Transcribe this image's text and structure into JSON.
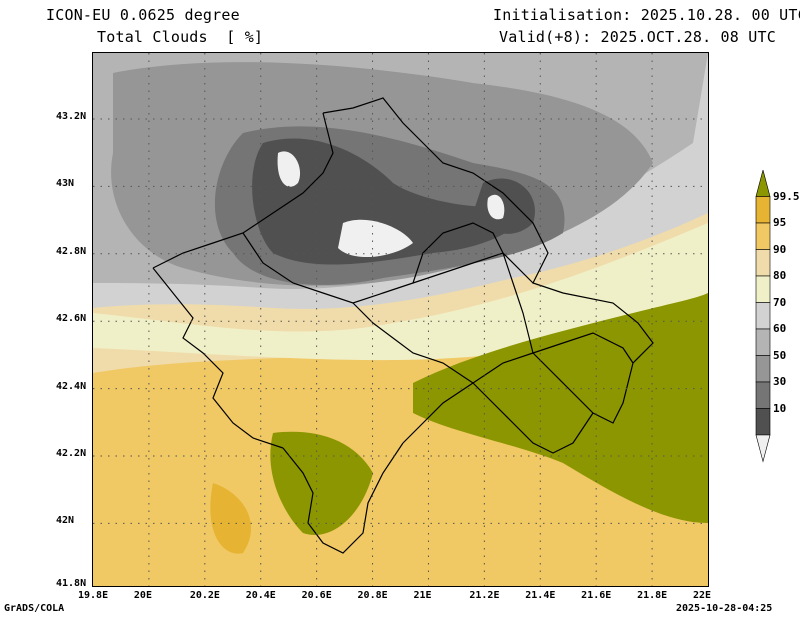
{
  "header": {
    "model": "ICON-EU 0.0625 degree",
    "field": "Total Clouds  [ %]",
    "init": "Initialisation: 2025.10.28. 00 UTC",
    "valid": "Valid(+8): 2025.OCT.28. 08 UTC"
  },
  "footer": {
    "left": "GrADS/COLA",
    "right": "2025-10-28-04:25"
  },
  "axes": {
    "x_ticks": [
      "19.8E",
      "20E",
      "20.2E",
      "20.4E",
      "20.6E",
      "20.8E",
      "21E",
      "21.2E",
      "21.4E",
      "21.6E",
      "21.8E",
      "22E"
    ],
    "y_ticks": [
      "43.2N",
      "43N",
      "42.8N",
      "42.6N",
      "42.4N",
      "42.2N",
      "42N",
      "41.8N"
    ],
    "lon_range": [
      19.8,
      22.0
    ],
    "lat_range": [
      41.8,
      43.4
    ]
  },
  "colorbar": {
    "labels": [
      "99.5",
      "95",
      "90",
      "80",
      "70",
      "60",
      "50",
      "30",
      "10"
    ],
    "colors": {
      "c10": "#505050",
      "c30": "#757575",
      "c50": "#969696",
      "c60": "#b4b4b4",
      "c70": "#d2d2d2",
      "c80": "#f0f0c8",
      "c90": "#f0dcaa",
      "c95": "#f0c864",
      "c99": "#e6b432",
      "c100": "#8c9600",
      "c0": "#f0f0f0"
    }
  }
}
